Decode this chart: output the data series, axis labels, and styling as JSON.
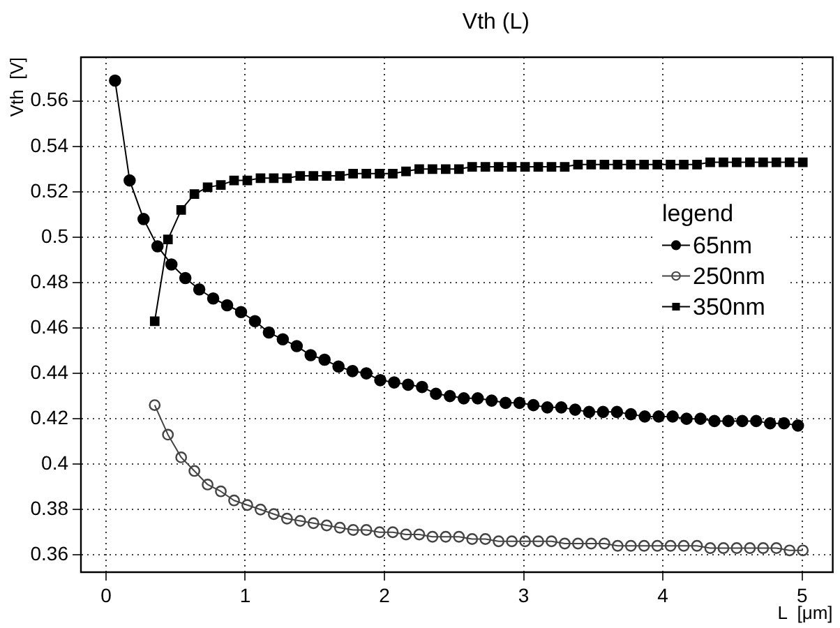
{
  "chart_data": {
    "type": "line",
    "title": "Vth (L)",
    "xlabel": "L  [μm]",
    "ylabel": "Vth  [V]",
    "legend_title": "legend",
    "legend": "right",
    "grid": true,
    "line_style": "solid",
    "xlim": [
      -0.18,
      5.22
    ],
    "xticks": [
      0,
      1,
      2,
      3,
      4,
      5
    ],
    "ylim": [
      0.3524,
      0.5793
    ],
    "yticks": [
      0.36,
      0.38,
      0.4,
      0.42,
      0.44,
      0.46,
      0.48,
      0.5,
      0.52,
      0.54,
      0.56
    ],
    "series": [
      {
        "name": "65nm",
        "color": "#000000",
        "marker": "circle",
        "x": [
          0.065,
          0.17,
          0.27,
          0.37,
          0.47,
          0.57,
          0.67,
          0.77,
          0.87,
          0.97,
          1.07,
          1.17,
          1.27,
          1.37,
          1.47,
          1.57,
          1.67,
          1.77,
          1.87,
          1.97,
          2.07,
          2.17,
          2.27,
          2.37,
          2.47,
          2.57,
          2.67,
          2.77,
          2.87,
          2.97,
          3.07,
          3.17,
          3.27,
          3.37,
          3.47,
          3.57,
          3.67,
          3.77,
          3.87,
          3.97,
          4.07,
          4.17,
          4.27,
          4.37,
          4.47,
          4.57,
          4.67,
          4.77,
          4.87,
          4.97
        ],
        "values": [
          0.569,
          0.525,
          0.508,
          0.496,
          0.488,
          0.482,
          0.477,
          0.473,
          0.47,
          0.467,
          0.463,
          0.458,
          0.455,
          0.452,
          0.448,
          0.446,
          0.443,
          0.441,
          0.44,
          0.437,
          0.436,
          0.435,
          0.434,
          0.431,
          0.43,
          0.429,
          0.429,
          0.428,
          0.427,
          0.427,
          0.426,
          0.425,
          0.425,
          0.424,
          0.423,
          0.423,
          0.423,
          0.422,
          0.421,
          0.421,
          0.421,
          0.42,
          0.42,
          0.419,
          0.419,
          0.419,
          0.419,
          0.418,
          0.418,
          0.417
        ]
      },
      {
        "name": "250nm",
        "color": "#444444",
        "marker": "open circle",
        "x": [
          0.35,
          0.445,
          0.54,
          0.635,
          0.73,
          0.825,
          0.92,
          1.015,
          1.11,
          1.205,
          1.3,
          1.395,
          1.49,
          1.585,
          1.68,
          1.775,
          1.87,
          1.965,
          2.06,
          2.155,
          2.25,
          2.345,
          2.44,
          2.535,
          2.63,
          2.725,
          2.82,
          2.915,
          3.01,
          3.105,
          3.2,
          3.295,
          3.39,
          3.485,
          3.58,
          3.675,
          3.77,
          3.865,
          3.96,
          4.055,
          4.15,
          4.245,
          4.34,
          4.435,
          4.53,
          4.625,
          4.72,
          4.815,
          4.91,
          5.005
        ],
        "values": [
          0.426,
          0.413,
          0.403,
          0.397,
          0.391,
          0.388,
          0.384,
          0.382,
          0.38,
          0.378,
          0.376,
          0.375,
          0.374,
          0.373,
          0.372,
          0.371,
          0.371,
          0.37,
          0.37,
          0.369,
          0.369,
          0.368,
          0.368,
          0.368,
          0.367,
          0.367,
          0.366,
          0.366,
          0.366,
          0.366,
          0.366,
          0.365,
          0.365,
          0.365,
          0.365,
          0.364,
          0.364,
          0.364,
          0.364,
          0.364,
          0.364,
          0.364,
          0.363,
          0.363,
          0.363,
          0.363,
          0.363,
          0.363,
          0.362,
          0.362
        ]
      },
      {
        "name": "350nm",
        "color": "#000000",
        "marker": "square",
        "x": [
          0.35,
          0.445,
          0.54,
          0.635,
          0.73,
          0.825,
          0.92,
          1.015,
          1.11,
          1.205,
          1.3,
          1.395,
          1.49,
          1.585,
          1.68,
          1.775,
          1.87,
          1.965,
          2.06,
          2.155,
          2.25,
          2.345,
          2.44,
          2.535,
          2.63,
          2.725,
          2.82,
          2.915,
          3.01,
          3.105,
          3.2,
          3.295,
          3.39,
          3.485,
          3.58,
          3.675,
          3.77,
          3.865,
          3.96,
          4.055,
          4.15,
          4.245,
          4.34,
          4.435,
          4.53,
          4.625,
          4.72,
          4.815,
          4.91,
          5.005
        ],
        "values": [
          0.463,
          0.499,
          0.512,
          0.519,
          0.522,
          0.523,
          0.525,
          0.525,
          0.526,
          0.526,
          0.526,
          0.527,
          0.527,
          0.527,
          0.527,
          0.528,
          0.528,
          0.528,
          0.528,
          0.529,
          0.53,
          0.53,
          0.53,
          0.53,
          0.531,
          0.531,
          0.531,
          0.531,
          0.531,
          0.531,
          0.531,
          0.531,
          0.532,
          0.532,
          0.532,
          0.532,
          0.532,
          0.532,
          0.532,
          0.532,
          0.532,
          0.532,
          0.533,
          0.533,
          0.533,
          0.533,
          0.533,
          0.533,
          0.533,
          0.533
        ]
      }
    ]
  }
}
